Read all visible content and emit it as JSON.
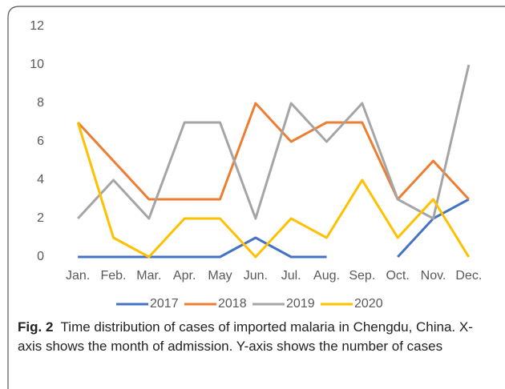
{
  "chart_data": {
    "type": "line",
    "categories": [
      "Jan.",
      "Feb.",
      "Mar.",
      "Apr.",
      "May",
      "Jun.",
      "Jul.",
      "Aug.",
      "Sep.",
      "Oct.",
      "Nov.",
      "Dec."
    ],
    "series": [
      {
        "name": "2017",
        "color": "#4472c4",
        "values": [
          0,
          0,
          0,
          0,
          0,
          1,
          0,
          0,
          null,
          0,
          2,
          3
        ]
      },
      {
        "name": "2018",
        "color": "#ed7d31",
        "values": [
          7,
          5,
          3,
          3,
          3,
          8,
          6,
          7,
          7,
          3,
          5,
          3
        ]
      },
      {
        "name": "2019",
        "color": "#a5a5a5",
        "values": [
          2,
          4,
          2,
          7,
          7,
          2,
          8,
          6,
          8,
          3,
          2,
          10
        ]
      },
      {
        "name": "2020",
        "color": "#ffc000",
        "values": [
          7,
          1,
          0,
          2,
          2,
          0,
          2,
          1,
          4,
          1,
          3,
          0
        ]
      }
    ],
    "ylim": [
      0,
      12
    ],
    "yticks": [
      0,
      2,
      4,
      6,
      8,
      10,
      12
    ],
    "grid": false,
    "legend": "bottom",
    "caption_label": "Fig. 2",
    "caption": "Time distribution of cases of imported malaria in Chengdu, China. X-axis shows the month of admission. Y-axis shows the number of cases"
  }
}
